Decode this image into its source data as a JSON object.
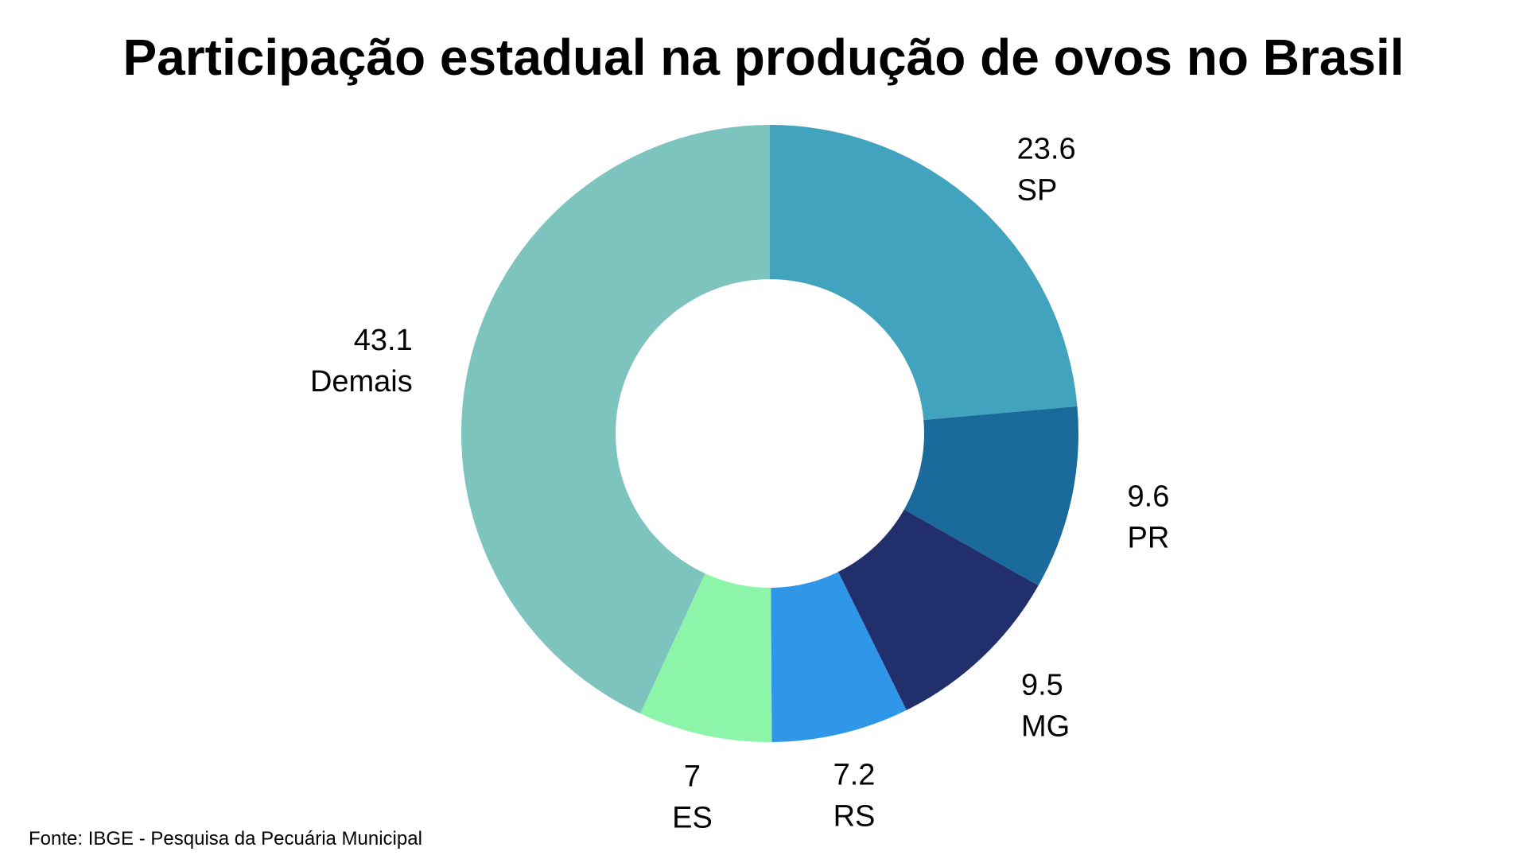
{
  "chart_data": {
    "type": "pie",
    "variant": "donut",
    "title": "Participação estadual na produção de ovos no Brasil",
    "source": "Fonte: IBGE - Pesquisa da Pecuária Municipal",
    "slices": [
      {
        "label": "SP",
        "value_text": "23.6",
        "value": 23.6,
        "color": "#41A3BD"
      },
      {
        "label": "PR",
        "value_text": "9.6",
        "value": 9.6,
        "color": "#1A6B9C"
      },
      {
        "label": "MG",
        "value_text": "9.5",
        "value": 9.5,
        "color": "#21306C"
      },
      {
        "label": "RS",
        "value_text": "7.2",
        "value": 7.2,
        "color": "#3096E8"
      },
      {
        "label": "ES",
        "value_text": "7",
        "value": 7.0,
        "color": "#8CF5AA"
      },
      {
        "label": "Demais",
        "value_text": "43.1",
        "value": 43.1,
        "color": "#7CC4BD"
      }
    ],
    "start_angle": "12 o'clock",
    "direction": "clockwise",
    "legend": "none"
  }
}
